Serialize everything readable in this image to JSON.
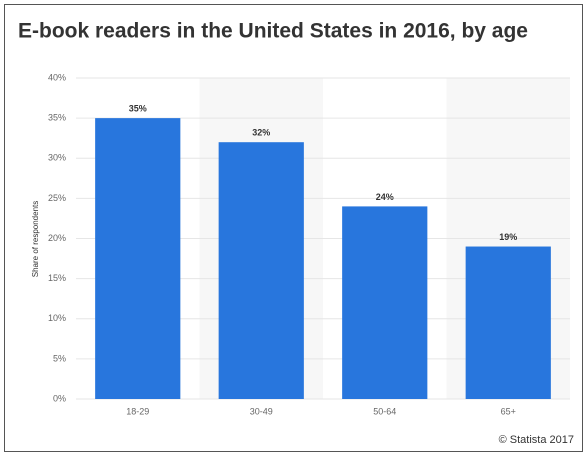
{
  "chart_data": {
    "type": "bar",
    "title": "E-book readers in the United States in 2016, by age",
    "y_label": "Share of respondents",
    "source": "© Statista 2017",
    "categories": [
      "18-29",
      "30-49",
      "50-64",
      "65+"
    ],
    "values": [
      35,
      32,
      24,
      19
    ],
    "value_labels": [
      "35%",
      "32%",
      "24%",
      "19%"
    ],
    "color": "#2876dd",
    "ylim": [
      0,
      40
    ],
    "yticks": [
      {
        "value": 0,
        "label": "0%"
      },
      {
        "value": 5,
        "label": "5%"
      },
      {
        "value": 10,
        "label": "10%"
      },
      {
        "value": 15,
        "label": "15%"
      },
      {
        "value": 20,
        "label": "20%"
      },
      {
        "value": 25,
        "label": "25%"
      },
      {
        "value": 30,
        "label": "30%"
      },
      {
        "value": 35,
        "label": "35%"
      },
      {
        "value": 40,
        "label": "40%"
      }
    ],
    "grid": true
  }
}
